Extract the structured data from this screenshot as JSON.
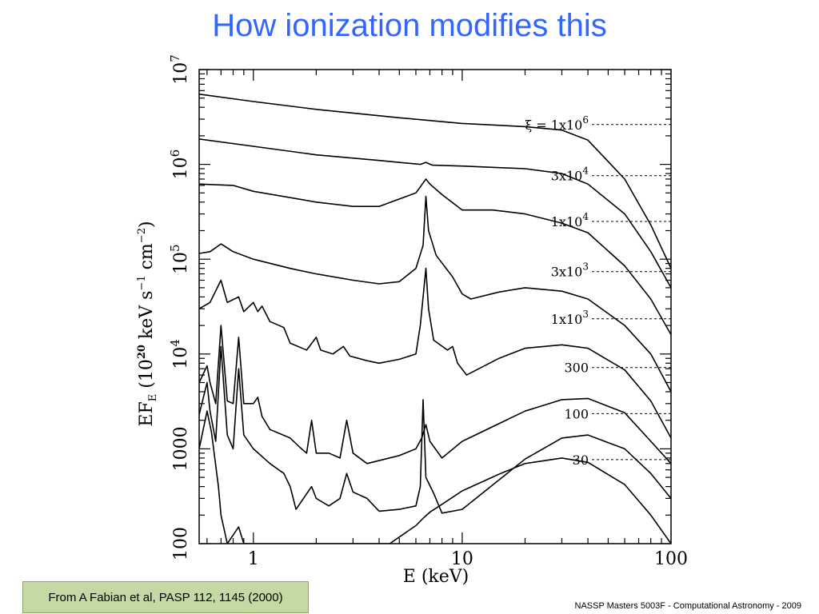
{
  "slide": {
    "title": "How ionization modifies this",
    "citation": "From A Fabian et al, PASP 112, 1145 (2000)",
    "footer": "NASSP Masters 5003F - Computational Astronomy - 2009",
    "title_color": "#3366ff",
    "citation_bg": "#c5d9a4"
  },
  "chart_data": {
    "type": "line",
    "title": "",
    "xlabel": "E (keV)",
    "ylabel": "EF_E (10^20 keV s^-1 cm^-2)",
    "xscale": "log",
    "yscale": "log",
    "xlim": [
      0.55,
      100
    ],
    "ylim": [
      100,
      10000000
    ],
    "x_ticks": [
      {
        "value": 1,
        "label": "1"
      },
      {
        "value": 10,
        "label": "10"
      },
      {
        "value": 100,
        "label": "100"
      }
    ],
    "y_ticks": [
      {
        "value": 100,
        "label": "100"
      },
      {
        "value": 1000,
        "label": "1000"
      },
      {
        "value": 10000,
        "label": "10^4"
      },
      {
        "value": 100000,
        "label": "10^5"
      },
      {
        "value": 1000000,
        "label": "10^6"
      },
      {
        "value": 10000000,
        "label": "10^7"
      }
    ],
    "grid": false,
    "series": [
      {
        "name": "ξ = 1x10^6",
        "label_y": 2630000,
        "points": [
          [
            0.55,
            5500000
          ],
          [
            1,
            4600000
          ],
          [
            2,
            3800000
          ],
          [
            5,
            3100000
          ],
          [
            10,
            2700000
          ],
          [
            20,
            2500000
          ],
          [
            30,
            2300000
          ],
          [
            40,
            1800000
          ],
          [
            60,
            700000
          ],
          [
            80,
            230000
          ],
          [
            100,
            80000
          ]
        ]
      },
      {
        "name": "3x10^4",
        "label_y": 760000,
        "points": [
          [
            0.55,
            1850000
          ],
          [
            1,
            1550000
          ],
          [
            2,
            1260000
          ],
          [
            4,
            1100000
          ],
          [
            6.3,
            1000000
          ],
          [
            6.7,
            1050000
          ],
          [
            7.2,
            980000
          ],
          [
            10,
            960000
          ],
          [
            20,
            900000
          ],
          [
            30,
            800000
          ],
          [
            40,
            620000
          ],
          [
            60,
            300000
          ],
          [
            80,
            120000
          ],
          [
            100,
            50000
          ]
        ]
      },
      {
        "name": "1x10^4",
        "label_y": 250000,
        "points": [
          [
            0.55,
            620000
          ],
          [
            0.8,
            600000
          ],
          [
            1,
            520000
          ],
          [
            2,
            400000
          ],
          [
            3,
            360000
          ],
          [
            4,
            360000
          ],
          [
            6,
            500000
          ],
          [
            6.7,
            700000
          ],
          [
            7,
            620000
          ],
          [
            8,
            480000
          ],
          [
            10,
            330000
          ],
          [
            14,
            330000
          ],
          [
            20,
            300000
          ],
          [
            30,
            240000
          ],
          [
            40,
            190000
          ],
          [
            60,
            85000
          ],
          [
            80,
            38000
          ],
          [
            100,
            16000
          ]
        ]
      },
      {
        "name": "3x10^3",
        "label_y": 74000,
        "points": [
          [
            0.55,
            115000
          ],
          [
            0.62,
            120000
          ],
          [
            0.7,
            145000
          ],
          [
            0.8,
            120000
          ],
          [
            1,
            100000
          ],
          [
            1.5,
            80000
          ],
          [
            2,
            70000
          ],
          [
            3,
            60000
          ],
          [
            4,
            55000
          ],
          [
            5,
            58000
          ],
          [
            6,
            80000
          ],
          [
            6.5,
            140000
          ],
          [
            6.7,
            460000
          ],
          [
            6.9,
            200000
          ],
          [
            7.5,
            110000
          ],
          [
            9,
            65000
          ],
          [
            10,
            43000
          ],
          [
            11,
            38000
          ],
          [
            15,
            45000
          ],
          [
            20,
            50000
          ],
          [
            30,
            46000
          ],
          [
            40,
            38000
          ],
          [
            60,
            20000
          ],
          [
            80,
            10000
          ],
          [
            100,
            4000
          ]
        ]
      },
      {
        "name": "1x10^3",
        "label_y": 23500,
        "points": [
          [
            0.55,
            30000
          ],
          [
            0.62,
            35000
          ],
          [
            0.7,
            60000
          ],
          [
            0.75,
            35000
          ],
          [
            0.85,
            40000
          ],
          [
            0.9,
            28000
          ],
          [
            1,
            35000
          ],
          [
            1.05,
            28000
          ],
          [
            1.1,
            32000
          ],
          [
            1.2,
            22000
          ],
          [
            1.4,
            19000
          ],
          [
            1.5,
            13000
          ],
          [
            1.8,
            11000
          ],
          [
            2,
            15000
          ],
          [
            2.1,
            11000
          ],
          [
            2.4,
            10000
          ],
          [
            2.7,
            12000
          ],
          [
            2.9,
            9500
          ],
          [
            3.5,
            8500
          ],
          [
            4,
            8000
          ],
          [
            5,
            8800
          ],
          [
            6,
            10000
          ],
          [
            6.3,
            20000
          ],
          [
            6.7,
            80000
          ],
          [
            6.9,
            30000
          ],
          [
            7.3,
            14000
          ],
          [
            8.5,
            11000
          ],
          [
            9,
            12000
          ],
          [
            9.5,
            8000
          ],
          [
            10.5,
            6000
          ],
          [
            15,
            9000
          ],
          [
            20,
            11500
          ],
          [
            30,
            12500
          ],
          [
            40,
            11500
          ],
          [
            60,
            6800
          ],
          [
            80,
            3200
          ],
          [
            100,
            1300
          ]
        ]
      },
      {
        "name": "300",
        "label_y": 7200,
        "points": [
          [
            0.55,
            5000
          ],
          [
            0.6,
            7500
          ],
          [
            0.62,
            5000
          ],
          [
            0.66,
            3000
          ],
          [
            0.7,
            20000
          ],
          [
            0.75,
            3200
          ],
          [
            0.8,
            3000
          ],
          [
            0.85,
            15000
          ],
          [
            0.9,
            3000
          ],
          [
            1,
            3000
          ],
          [
            1.05,
            3500
          ],
          [
            1.1,
            2200
          ],
          [
            1.2,
            1600
          ],
          [
            1.5,
            1300
          ],
          [
            1.7,
            1000
          ],
          [
            1.8,
            900
          ],
          [
            1.9,
            2000
          ],
          [
            2,
            900
          ],
          [
            2.3,
            900
          ],
          [
            2.6,
            800
          ],
          [
            2.8,
            2000
          ],
          [
            3,
            900
          ],
          [
            3.5,
            700
          ],
          [
            5,
            850
          ],
          [
            6,
            1000
          ],
          [
            6.4,
            1300
          ],
          [
            6.7,
            1800
          ],
          [
            7,
            1200
          ],
          [
            8,
            800
          ],
          [
            10,
            1200
          ],
          [
            20,
            2500
          ],
          [
            30,
            3300
          ],
          [
            40,
            3400
          ],
          [
            60,
            2400
          ],
          [
            80,
            1200
          ],
          [
            100,
            700
          ]
        ]
      },
      {
        "name": "100",
        "label_y": 2350,
        "points": [
          [
            0.55,
            2300
          ],
          [
            0.6,
            5000
          ],
          [
            0.62,
            2500
          ],
          [
            0.66,
            1200
          ],
          [
            0.7,
            12000
          ],
          [
            0.75,
            1400
          ],
          [
            0.8,
            1000
          ],
          [
            0.85,
            7000
          ],
          [
            0.9,
            1400
          ],
          [
            1,
            1000
          ],
          [
            1.2,
            700
          ],
          [
            1.4,
            550
          ],
          [
            1.5,
            400
          ],
          [
            1.6,
            230
          ],
          [
            1.9,
            400
          ],
          [
            2,
            300
          ],
          [
            2.3,
            250
          ],
          [
            2.6,
            300
          ],
          [
            2.8,
            550
          ],
          [
            3,
            350
          ],
          [
            3.5,
            300
          ],
          [
            4,
            220
          ],
          [
            5,
            230
          ],
          [
            6,
            250
          ],
          [
            6.3,
            400
          ],
          [
            6.5,
            3300
          ],
          [
            6.7,
            500
          ],
          [
            7.3,
            340
          ],
          [
            8,
            210
          ],
          [
            10,
            230
          ],
          [
            20,
            780
          ],
          [
            30,
            1300
          ],
          [
            40,
            1400
          ],
          [
            60,
            1000
          ],
          [
            80,
            550
          ],
          [
            100,
            300
          ]
        ]
      },
      {
        "name": "30",
        "label_y": 770,
        "points": [
          [
            0.55,
            1000
          ],
          [
            0.6,
            2500
          ],
          [
            0.63,
            1500
          ],
          [
            0.68,
            400
          ],
          [
            0.7,
            200
          ],
          [
            0.75,
            100
          ],
          [
            0.85,
            150
          ],
          [
            0.9,
            100
          ],
          [
            1.2,
            100
          ],
          [
            1.7,
            100
          ],
          [
            4.5,
            100
          ],
          [
            6,
            155
          ],
          [
            6.5,
            185
          ],
          [
            7,
            215
          ],
          [
            8,
            260
          ],
          [
            10,
            360
          ],
          [
            15,
            540
          ],
          [
            20,
            700
          ],
          [
            30,
            800
          ],
          [
            40,
            720
          ],
          [
            60,
            420
          ],
          [
            80,
            200
          ],
          [
            100,
            100
          ]
        ]
      }
    ]
  }
}
